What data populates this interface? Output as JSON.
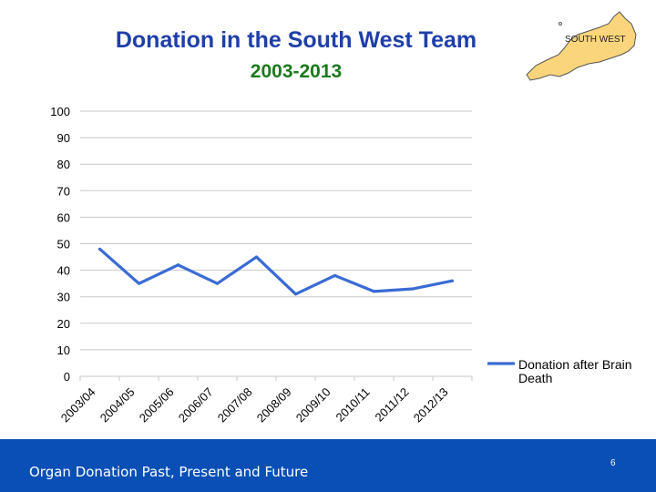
{
  "slide": {
    "title": "Donation in the South West Team",
    "subtitle": "2003-2013",
    "map_label": "SOUTH WEST",
    "footer_text": "Organ Donation Past, Present and Future",
    "page_number": "6",
    "colors": {
      "title": "#1f3fa8",
      "subtitle": "#1c7a1c",
      "footer_bg": "#0a4fb5",
      "map_fill": "#fbd57b",
      "line": "#3a6bd4"
    }
  },
  "chart_data": {
    "type": "line",
    "title": "",
    "xlabel": "",
    "ylabel": "",
    "categories": [
      "2003/04",
      "2004/05",
      "2005/06",
      "2006/07",
      "2007/08",
      "2008/09",
      "2009/10",
      "2010/11",
      "2011/12",
      "2012/13"
    ],
    "series": [
      {
        "name": "Donation after Brain Death",
        "values": [
          48,
          35,
          42,
          35,
          45,
          31,
          38,
          32,
          33,
          36
        ]
      }
    ],
    "ylim": [
      0,
      100
    ],
    "yticks": [
      0,
      10,
      20,
      30,
      40,
      50,
      60,
      70,
      80,
      90,
      100
    ],
    "grid": true,
    "legend_position": "bottom-right"
  }
}
